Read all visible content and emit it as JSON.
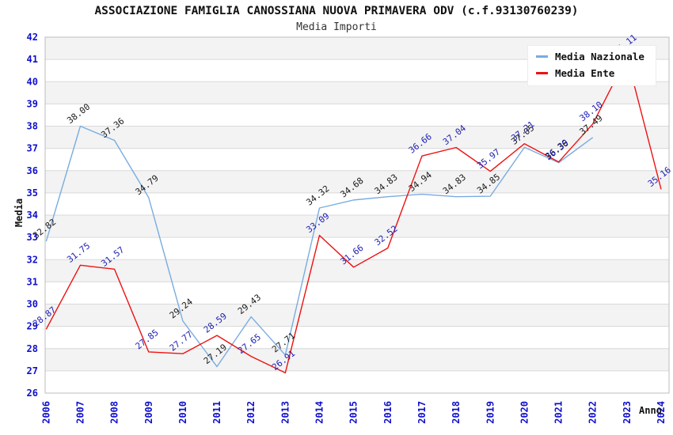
{
  "title": "ASSOCIAZIONE FAMIGLIA CANOSSIANA NUOVA PRIMAVERA ODV (c.f.93130760239)",
  "subtitle": "Media Importi",
  "colors": {
    "axis_tick_text": "#1010cc",
    "nazionale_line": "#79ace1",
    "ente_line": "#ee1111",
    "nazionale_label_text": "#1a1a1a",
    "ente_label_text": "#1f1fb4",
    "band_fill": "#f3f3f3",
    "gridline": "#d9d9d9",
    "plot_border": "#bdbdbd"
  },
  "chart_data": {
    "type": "line",
    "title": "ASSOCIAZIONE FAMIGLIA CANOSSIANA NUOVA PRIMAVERA ODV (c.f.93130760239)",
    "subtitle": "Media Importi",
    "xlabel": "Anno",
    "ylabel": "Media",
    "ylim": [
      26,
      42
    ],
    "y_tick_step": 1,
    "grid": "horizontal",
    "alternating_bands": true,
    "legend_position": "top-right",
    "x": [
      2006,
      2007,
      2008,
      2009,
      2010,
      2011,
      2012,
      2013,
      2014,
      2015,
      2016,
      2017,
      2018,
      2019,
      2020,
      2021,
      2022,
      2023,
      2024
    ],
    "series": [
      {
        "name": "Media Nazionale",
        "color": "#79ace1",
        "label_color": "#1a1a1a",
        "values": [
          32.82,
          38.0,
          37.36,
          34.79,
          29.24,
          27.19,
          29.43,
          27.71,
          34.32,
          34.68,
          34.83,
          34.94,
          34.83,
          34.85,
          37.05,
          36.36,
          37.49,
          null,
          null
        ]
      },
      {
        "name": "Media Ente",
        "color": "#ee1111",
        "label_color": "#1f1fb4",
        "values": [
          28.87,
          31.75,
          31.57,
          27.85,
          27.77,
          28.59,
          27.65,
          26.91,
          33.09,
          31.66,
          32.52,
          36.66,
          37.04,
          35.97,
          37.21,
          36.39,
          38.1,
          41.11,
          35.16
        ]
      }
    ]
  }
}
